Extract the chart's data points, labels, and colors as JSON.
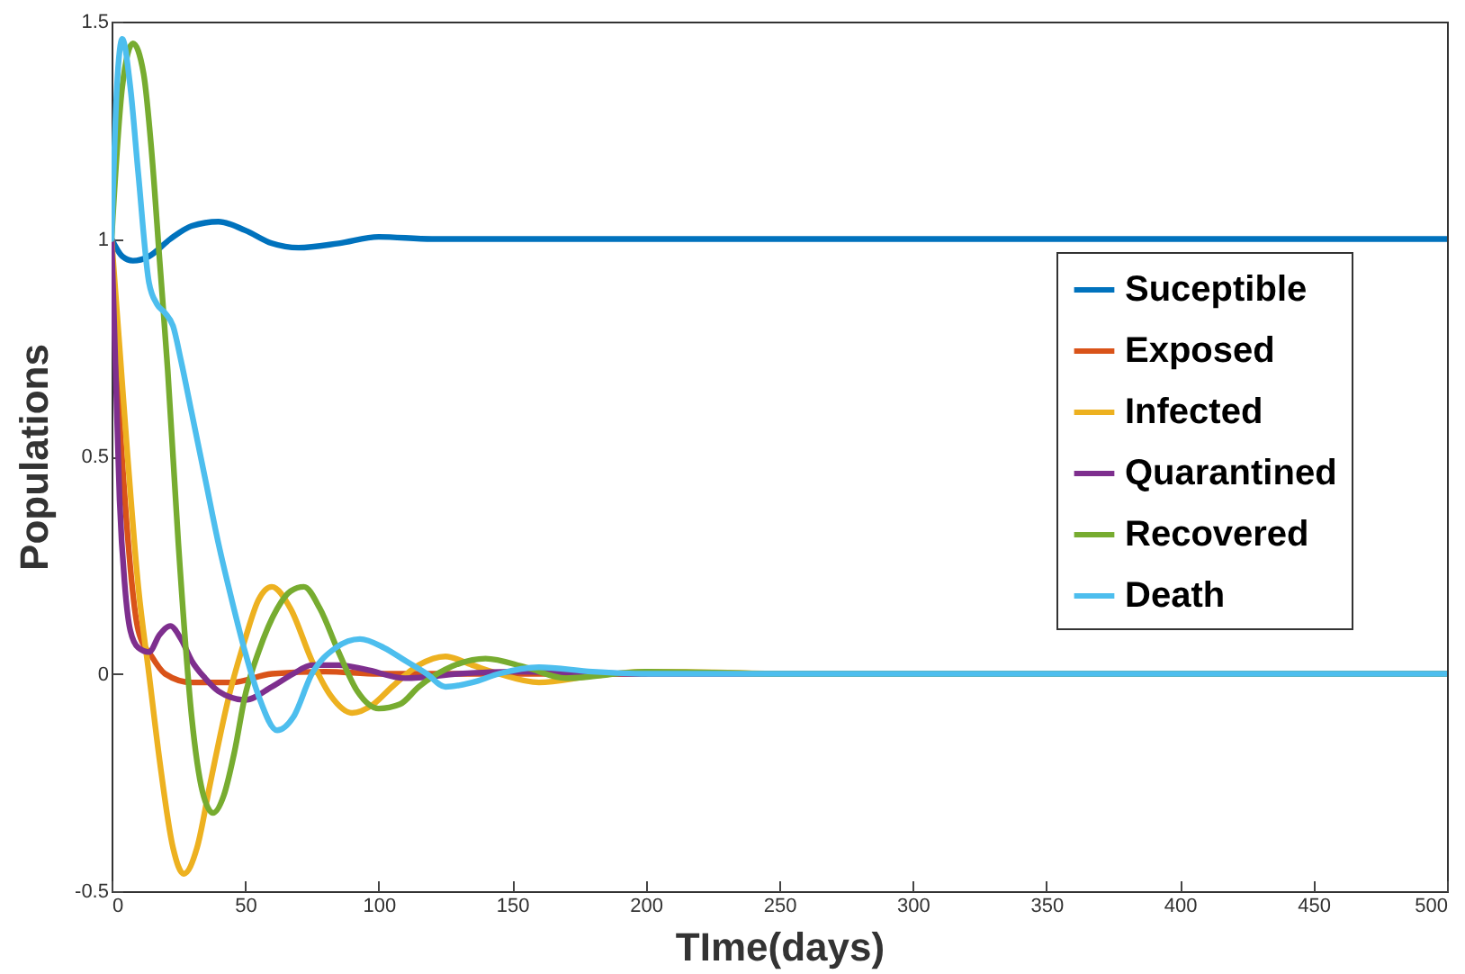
{
  "chart_data": {
    "type": "line",
    "xlabel": "TIme(days)",
    "ylabel": "Populations",
    "xlim": [
      0,
      500
    ],
    "ylim": [
      -0.5,
      1.5
    ],
    "xticks": [
      0,
      50,
      100,
      150,
      200,
      250,
      300,
      350,
      400,
      450,
      500
    ],
    "yticks": [
      -0.5,
      {
        "value": 0,
        "label": "0"
      },
      0.5,
      {
        "value": 1,
        "label": "1"
      },
      1.5
    ],
    "grid": false,
    "legend": "right",
    "marker": "none",
    "line_style": "solid",
    "series": [
      {
        "name": "Suceptible",
        "color": "#0072bd",
        "x": [
          0,
          4,
          8,
          14,
          22,
          30,
          40,
          50,
          60,
          70,
          85,
          100,
          120,
          150,
          200,
          300,
          500
        ],
        "values": [
          1,
          0.96,
          0.95,
          0.96,
          1.0,
          1.03,
          1.04,
          1.02,
          0.99,
          0.98,
          0.99,
          1.005,
          1.0,
          1.0,
          1.0,
          1.0,
          1.0
        ]
      },
      {
        "name": "Exposed",
        "color": "#d95319",
        "x": [
          0,
          2,
          5,
          10,
          15,
          20,
          30,
          45,
          60,
          80,
          100,
          150,
          200
        ],
        "values": [
          1,
          0.7,
          0.4,
          0.1,
          0.04,
          0.0,
          -0.02,
          -0.02,
          0.0,
          0.005,
          0,
          0,
          0
        ]
      },
      {
        "name": "Infected",
        "color": "#edb120",
        "x": [
          0,
          3,
          6,
          10,
          14,
          18,
          23,
          27,
          32,
          37,
          44,
          50,
          55,
          60,
          67,
          75,
          82,
          90,
          98,
          105,
          115,
          125,
          135,
          145,
          160,
          180,
          200,
          250
        ],
        "values": [
          1,
          0.75,
          0.5,
          0.2,
          0.0,
          -0.2,
          -0.4,
          -0.46,
          -0.4,
          -0.25,
          -0.05,
          0.08,
          0.17,
          0.2,
          0.15,
          0.03,
          -0.05,
          -0.09,
          -0.07,
          -0.03,
          0.02,
          0.04,
          0.02,
          0.0,
          -0.02,
          -0.005,
          0.005,
          0
        ]
      },
      {
        "name": "Quarantined",
        "color": "#7e2f8e",
        "x": [
          0,
          1.5,
          3,
          5,
          7,
          10,
          14,
          18,
          22,
          26,
          30,
          35,
          40,
          50,
          60,
          68,
          75,
          85,
          95,
          110,
          130,
          150,
          200,
          300,
          500
        ],
        "values": [
          1,
          0.7,
          0.4,
          0.2,
          0.1,
          0.06,
          0.05,
          0.09,
          0.11,
          0.08,
          0.03,
          -0.01,
          -0.04,
          -0.06,
          -0.03,
          0.0,
          0.02,
          0.02,
          0.01,
          -0.01,
          0.0,
          0.005,
          0,
          0,
          0
        ]
      },
      {
        "name": "Recovered",
        "color": "#77ac30",
        "x": [
          0,
          4,
          8,
          12,
          15,
          18,
          21,
          25,
          30,
          34,
          38,
          42,
          46,
          50,
          55,
          62,
          67,
          72,
          78,
          85,
          92,
          100,
          108,
          115,
          125,
          140,
          155,
          170,
          200,
          250,
          300,
          500
        ],
        "values": [
          1,
          1.35,
          1.45,
          1.38,
          1.2,
          0.95,
          0.7,
          0.3,
          -0.1,
          -0.27,
          -0.32,
          -0.28,
          -0.18,
          -0.05,
          0.05,
          0.15,
          0.19,
          0.2,
          0.15,
          0.05,
          -0.04,
          -0.08,
          -0.07,
          -0.03,
          0.01,
          0.035,
          0.015,
          -0.01,
          0.005,
          0,
          0,
          0
        ]
      },
      {
        "name": "Death",
        "color": "#4dbeee",
        "x": [
          0,
          2,
          4,
          7,
          10,
          14,
          17,
          20,
          23,
          26,
          30,
          35,
          40,
          45,
          50,
          55,
          62,
          68,
          75,
          84,
          93,
          102,
          110,
          118,
          125,
          135,
          145,
          160,
          180,
          200,
          300,
          500
        ],
        "values": [
          1,
          1.35,
          1.46,
          1.35,
          1.15,
          0.9,
          0.85,
          0.83,
          0.8,
          0.72,
          0.6,
          0.45,
          0.3,
          0.17,
          0.05,
          -0.05,
          -0.13,
          -0.1,
          0.0,
          0.06,
          0.08,
          0.06,
          0.03,
          0.0,
          -0.03,
          -0.02,
          0.0,
          0.015,
          0.005,
          0,
          0,
          0
        ]
      }
    ]
  }
}
